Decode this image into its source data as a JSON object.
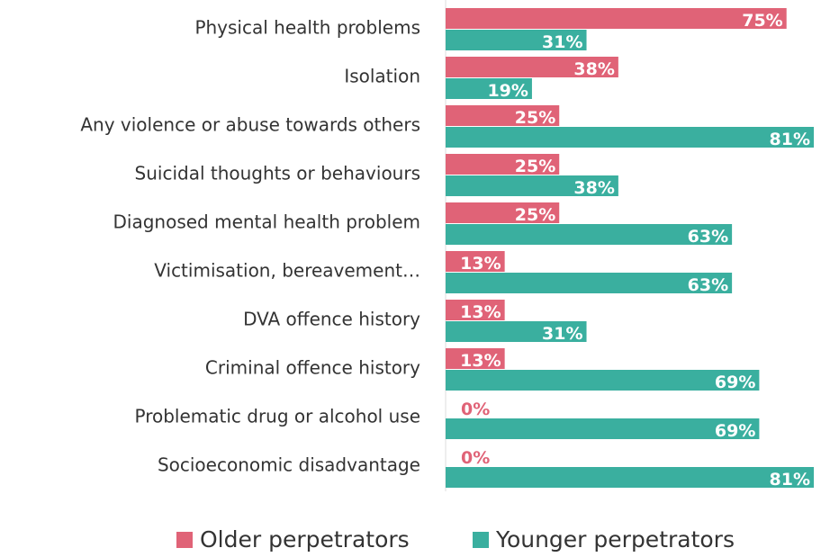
{
  "chart_data": {
    "type": "bar",
    "orientation": "horizontal",
    "categories": [
      "Physical health problems",
      "Isolation",
      "Any violence or abuse towards others",
      "Suicidal thoughts or behaviours",
      "Diagnosed mental health problem",
      "Victimisation, bereavement…",
      "DVA offence history",
      "Criminal offence history",
      "Problematic drug or alcohol use",
      "Socioeconomic disadvantage"
    ],
    "series": [
      {
        "name": "Older perpetrators",
        "color": "#e06377",
        "values": [
          75,
          38,
          25,
          25,
          25,
          13,
          13,
          13,
          0,
          0
        ],
        "value_labels": [
          "75%",
          "38%",
          "25%",
          "25%",
          "25%",
          "13%",
          "13%",
          "13%",
          "0%",
          "0%"
        ]
      },
      {
        "name": "Younger perpetrators",
        "color": "#3aaf9f",
        "values": [
          31,
          19,
          81,
          38,
          63,
          63,
          31,
          69,
          69,
          81
        ],
        "value_labels": [
          "31%",
          "19%",
          "81%",
          "38%",
          "63%",
          "63%",
          "31%",
          "69%",
          "69%",
          "81%"
        ]
      }
    ],
    "xlim": [
      0,
      81
    ]
  }
}
